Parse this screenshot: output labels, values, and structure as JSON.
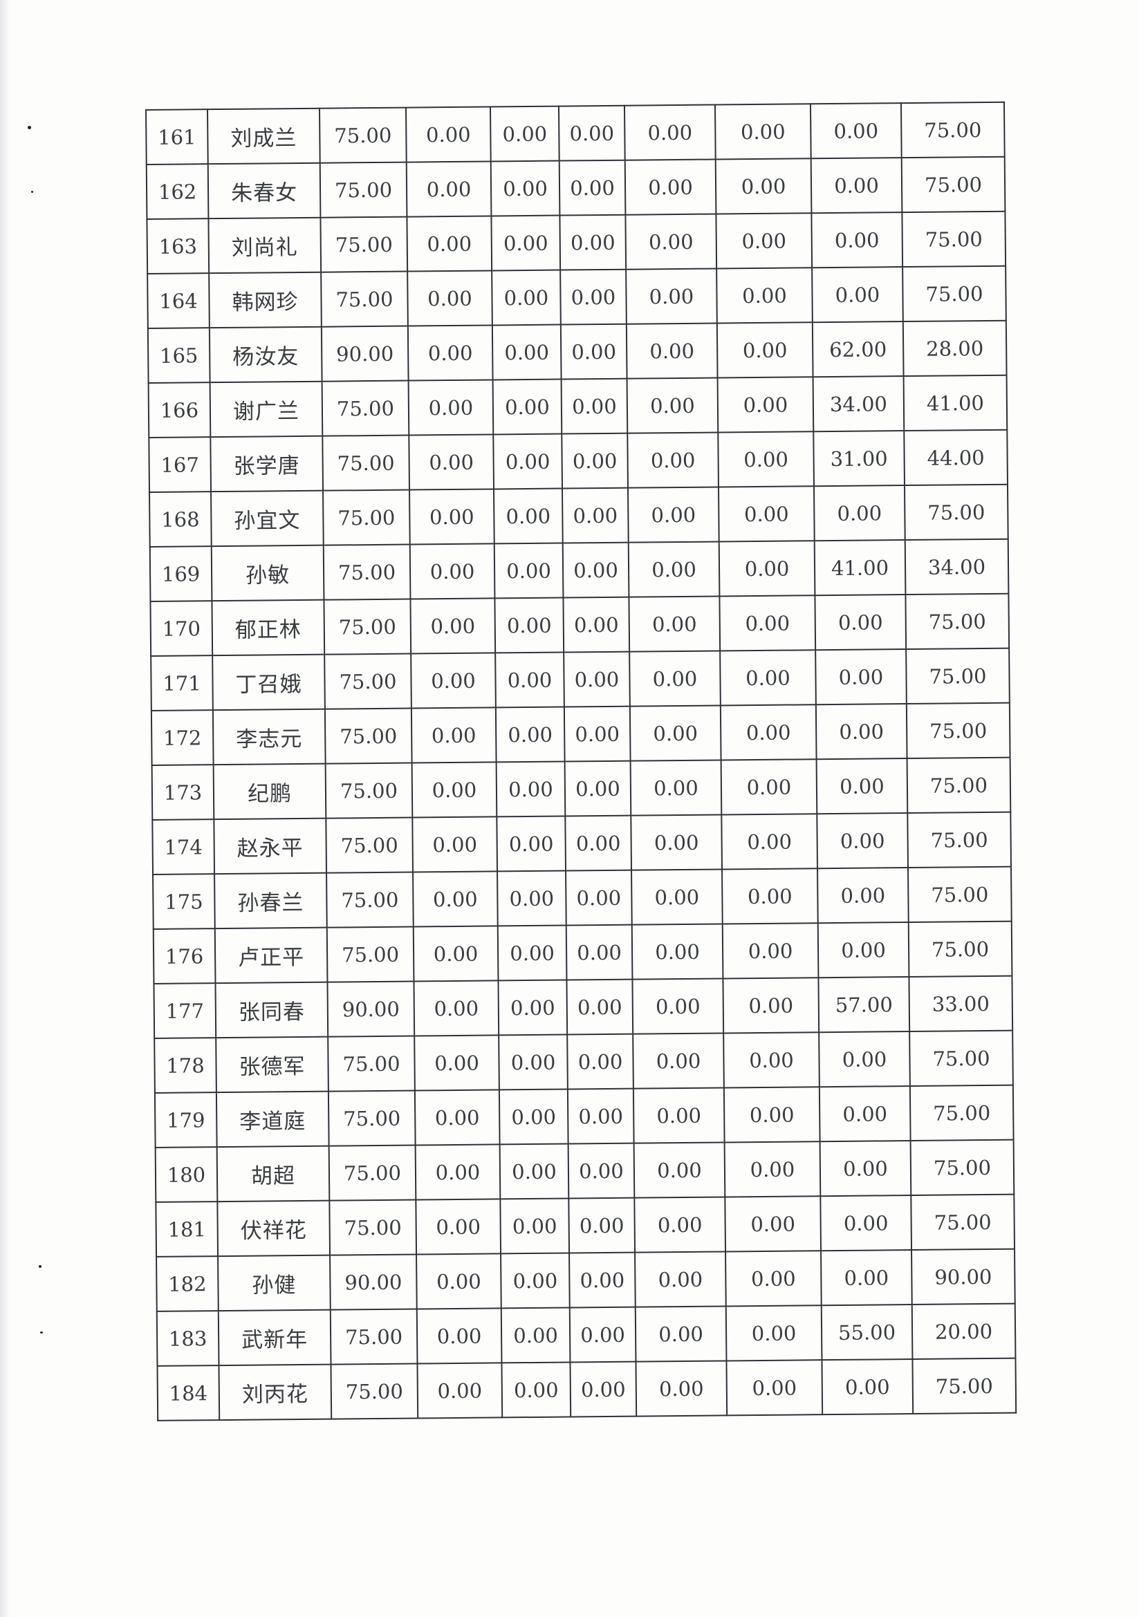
{
  "rows": [
    [
      "161",
      "刘成兰",
      "75.00",
      "0.00",
      "0.00",
      "0.00",
      "0.00",
      "0.00",
      "0.00",
      "75.00"
    ],
    [
      "162",
      "朱春女",
      "75.00",
      "0.00",
      "0.00",
      "0.00",
      "0.00",
      "0.00",
      "0.00",
      "75.00"
    ],
    [
      "163",
      "刘尚礼",
      "75.00",
      "0.00",
      "0.00",
      "0.00",
      "0.00",
      "0.00",
      "0.00",
      "75.00"
    ],
    [
      "164",
      "韩网珍",
      "75.00",
      "0.00",
      "0.00",
      "0.00",
      "0.00",
      "0.00",
      "0.00",
      "75.00"
    ],
    [
      "165",
      "杨汝友",
      "90.00",
      "0.00",
      "0.00",
      "0.00",
      "0.00",
      "0.00",
      "62.00",
      "28.00"
    ],
    [
      "166",
      "谢广兰",
      "75.00",
      "0.00",
      "0.00",
      "0.00",
      "0.00",
      "0.00",
      "34.00",
      "41.00"
    ],
    [
      "167",
      "张学唐",
      "75.00",
      "0.00",
      "0.00",
      "0.00",
      "0.00",
      "0.00",
      "31.00",
      "44.00"
    ],
    [
      "168",
      "孙宜文",
      "75.00",
      "0.00",
      "0.00",
      "0.00",
      "0.00",
      "0.00",
      "0.00",
      "75.00"
    ],
    [
      "169",
      "孙敏",
      "75.00",
      "0.00",
      "0.00",
      "0.00",
      "0.00",
      "0.00",
      "41.00",
      "34.00"
    ],
    [
      "170",
      "郁正林",
      "75.00",
      "0.00",
      "0.00",
      "0.00",
      "0.00",
      "0.00",
      "0.00",
      "75.00"
    ],
    [
      "171",
      "丁召娥",
      "75.00",
      "0.00",
      "0.00",
      "0.00",
      "0.00",
      "0.00",
      "0.00",
      "75.00"
    ],
    [
      "172",
      "李志元",
      "75.00",
      "0.00",
      "0.00",
      "0.00",
      "0.00",
      "0.00",
      "0.00",
      "75.00"
    ],
    [
      "173",
      "纪鹏",
      "75.00",
      "0.00",
      "0.00",
      "0.00",
      "0.00",
      "0.00",
      "0.00",
      "75.00"
    ],
    [
      "174",
      "赵永平",
      "75.00",
      "0.00",
      "0.00",
      "0.00",
      "0.00",
      "0.00",
      "0.00",
      "75.00"
    ],
    [
      "175",
      "孙春兰",
      "75.00",
      "0.00",
      "0.00",
      "0.00",
      "0.00",
      "0.00",
      "0.00",
      "75.00"
    ],
    [
      "176",
      "卢正平",
      "75.00",
      "0.00",
      "0.00",
      "0.00",
      "0.00",
      "0.00",
      "0.00",
      "75.00"
    ],
    [
      "177",
      "张同春",
      "90.00",
      "0.00",
      "0.00",
      "0.00",
      "0.00",
      "0.00",
      "57.00",
      "33.00"
    ],
    [
      "178",
      "张德军",
      "75.00",
      "0.00",
      "0.00",
      "0.00",
      "0.00",
      "0.00",
      "0.00",
      "75.00"
    ],
    [
      "179",
      "李道庭",
      "75.00",
      "0.00",
      "0.00",
      "0.00",
      "0.00",
      "0.00",
      "0.00",
      "75.00"
    ],
    [
      "180",
      "胡超",
      "75.00",
      "0.00",
      "0.00",
      "0.00",
      "0.00",
      "0.00",
      "0.00",
      "75.00"
    ],
    [
      "181",
      "伏祥花",
      "75.00",
      "0.00",
      "0.00",
      "0.00",
      "0.00",
      "0.00",
      "0.00",
      "75.00"
    ],
    [
      "182",
      "孙健",
      "90.00",
      "0.00",
      "0.00",
      "0.00",
      "0.00",
      "0.00",
      "0.00",
      "90.00"
    ],
    [
      "183",
      "武新年",
      "75.00",
      "0.00",
      "0.00",
      "0.00",
      "0.00",
      "0.00",
      "55.00",
      "20.00"
    ],
    [
      "184",
      "刘丙花",
      "75.00",
      "0.00",
      "0.00",
      "0.00",
      "0.00",
      "0.00",
      "0.00",
      "75.00"
    ]
  ]
}
